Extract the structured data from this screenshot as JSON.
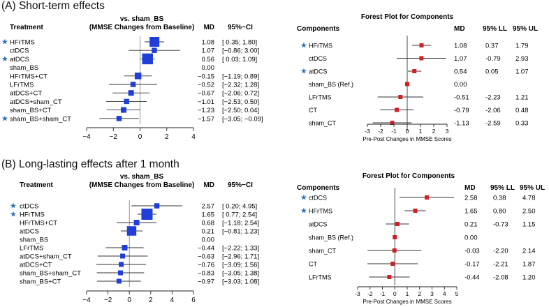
{
  "headings": {
    "a": "(A) Short-term effects",
    "b": "(B) Long-lasting effects after 1 month"
  },
  "colors": {
    "box_blue": "#1f3fd8",
    "square_red": "#d21f26",
    "star": "#2a6fb5",
    "line": "#222222"
  },
  "chart_data": [
    {
      "id": "A_left",
      "type": "forest",
      "title": "vs. sham_BS",
      "subtitle": "(MMSE Changes from Baseline)",
      "col_treatment": "Treatment",
      "col_md": "MD",
      "col_ci": "95%−CI",
      "xlim": [
        -4,
        4
      ],
      "ticks": [
        -4,
        -2,
        0,
        2,
        4
      ],
      "tick_labels": [
        "−4",
        "−2",
        "0",
        "2",
        "4"
      ],
      "rows": [
        {
          "label": "HFrTMS",
          "star": true,
          "md": 1.08,
          "lo": 0.35,
          "hi": 1.8,
          "w": 1.0,
          "md_text": "1.08",
          "ci_text": "[ 0.35;  1.80]"
        },
        {
          "label": "ctDCS",
          "star": false,
          "md": 1.07,
          "lo": -0.86,
          "hi": 3.0,
          "w": 0.35,
          "md_text": "1.07",
          "ci_text": "[−0.86;  3.00]"
        },
        {
          "label": "atDCS",
          "star": true,
          "md": 0.56,
          "lo": 0.03,
          "hi": 1.09,
          "w": 1.15,
          "md_text": "0.56",
          "ci_text": "[ 0.03;  1.09]"
        },
        {
          "label": "sham_BS",
          "star": false,
          "md": null,
          "lo": null,
          "hi": null,
          "w": 0,
          "md_text": "0.00",
          "ci_text": ""
        },
        {
          "label": "HFrTMS+CT",
          "star": false,
          "md": -0.15,
          "lo": -1.19,
          "hi": 0.89,
          "w": 0.55,
          "md_text": "−0.15",
          "ci_text": "[−1.19;  0.89]"
        },
        {
          "label": "LFrTMS",
          "star": false,
          "md": -0.52,
          "lo": -2.32,
          "hi": 1.28,
          "w": 0.35,
          "md_text": "−0.52",
          "ci_text": "[−2.32;  1.28]"
        },
        {
          "label": "atDCS+CT",
          "star": false,
          "md": -0.67,
          "lo": -2.06,
          "hi": 0.72,
          "w": 0.4,
          "md_text": "−0.67",
          "ci_text": "[−2.06;  0.72]"
        },
        {
          "label": "atDCS+sham_CT",
          "star": false,
          "md": -1.01,
          "lo": -2.53,
          "hi": 0.5,
          "w": 0.35,
          "md_text": "−1.01",
          "ci_text": "[−2.53;  0.50]"
        },
        {
          "label": "sham_BS+CT",
          "star": false,
          "md": -1.23,
          "lo": -2.5,
          "hi": 0.04,
          "w": 0.4,
          "md_text": "−1.23",
          "ci_text": "[−2.50;  0.04]"
        },
        {
          "label": "sham_BS+sham_CT",
          "star": true,
          "md": -1.57,
          "lo": -3.05,
          "hi": -0.09,
          "w": 0.35,
          "md_text": "−1.57",
          "ci_text": "[−3.05; −0.09]"
        }
      ]
    },
    {
      "id": "A_right",
      "type": "forest",
      "title": "Forest Plot for Components",
      "col_components": "Components",
      "col_md": "MD",
      "col_ll": "95% LL",
      "col_ul": "95% UL",
      "xlabel": "Pre-Post Changes in MMSE Scores",
      "xlim": [
        -3,
        3
      ],
      "ticks": [
        -3,
        -2,
        -1,
        0,
        1,
        2,
        3
      ],
      "tick_labels": [
        "-3",
        "-2",
        "-1",
        "0",
        "1",
        "2",
        "3"
      ],
      "rows": [
        {
          "label": "HFrTMS",
          "star": true,
          "md": 1.08,
          "lo": 0.37,
          "hi": 1.79,
          "md_text": "1.08",
          "ll_text": "0.37",
          "ul_text": "1.79"
        },
        {
          "label": "ctDCS",
          "star": false,
          "md": 1.07,
          "lo": -0.79,
          "hi": 2.93,
          "md_text": "1.07",
          "ll_text": "-0.79",
          "ul_text": "2.93"
        },
        {
          "label": "atDCS",
          "star": true,
          "md": 0.54,
          "lo": 0.05,
          "hi": 1.07,
          "md_text": "0.54",
          "ll_text": "0.05",
          "ul_text": "1.07"
        },
        {
          "label": "sham_BS (Ref.)",
          "star": false,
          "md": 0.0,
          "lo": null,
          "hi": null,
          "md_text": "0.00",
          "ll_text": "",
          "ul_text": ""
        },
        {
          "label": "LFrTMS",
          "star": false,
          "md": -0.51,
          "lo": -2.23,
          "hi": 1.21,
          "md_text": "-0.51",
          "ll_text": "-2.23",
          "ul_text": "1.21"
        },
        {
          "label": "CT",
          "star": false,
          "md": -0.79,
          "lo": -2.06,
          "hi": 0.48,
          "md_text": "-0.79",
          "ll_text": "-2.06",
          "ul_text": "0.48"
        },
        {
          "label": "sham_CT",
          "star": false,
          "md": -1.13,
          "lo": -2.59,
          "hi": 0.33,
          "md_text": "-1.13",
          "ll_text": "-2.59",
          "ul_text": "0.33"
        }
      ]
    },
    {
      "id": "B_left",
      "type": "forest",
      "title": "vs. sham_BS",
      "subtitle": "(MMSE Changes from Baseline)",
      "col_treatment": "Treatment",
      "col_md": "MD",
      "col_ci": "95%−CI",
      "xlim": [
        -4,
        6
      ],
      "ticks": [
        -4,
        -2,
        0,
        2,
        4,
        6
      ],
      "tick_labels": [
        "−4",
        "−2",
        "0",
        "2",
        "4",
        "6"
      ],
      "rows": [
        {
          "label": "ctDCS",
          "star": true,
          "md": 2.57,
          "lo": 0.2,
          "hi": 4.95,
          "w": 0.35,
          "md_text": "2.57",
          "ci_text": "[ 0.20;  4.95]"
        },
        {
          "label": "HFrTMS",
          "star": true,
          "md": 1.65,
          "lo": 0.77,
          "hi": 2.54,
          "w": 1.2,
          "md_text": "1.65",
          "ci_text": "[ 0.77;  2.54]"
        },
        {
          "label": "HFrTMS+CT",
          "star": false,
          "md": 0.68,
          "lo": -1.18,
          "hi": 2.54,
          "w": 0.4,
          "md_text": "0.68",
          "ci_text": "[−1.18;  2.54]"
        },
        {
          "label": "atDCS",
          "star": false,
          "md": 0.21,
          "lo": -0.81,
          "hi": 1.23,
          "w": 0.95,
          "md_text": "0.21",
          "ci_text": "[−0.81;  1.23]"
        },
        {
          "label": "sham_BS",
          "star": false,
          "md": null,
          "lo": null,
          "hi": null,
          "w": 0,
          "md_text": "0.00",
          "ci_text": ""
        },
        {
          "label": "LFrTMS",
          "star": false,
          "md": -0.44,
          "lo": -2.22,
          "hi": 1.33,
          "w": 0.4,
          "md_text": "−0.44",
          "ci_text": "[−2.22;  1.33]"
        },
        {
          "label": "atDCS+sham_CT",
          "star": false,
          "md": -0.63,
          "lo": -2.96,
          "hi": 1.71,
          "w": 0.3,
          "md_text": "−0.63",
          "ci_text": "[−2.96;  1.71]"
        },
        {
          "label": "atDCS+CT",
          "star": false,
          "md": -0.76,
          "lo": -3.09,
          "hi": 1.56,
          "w": 0.3,
          "md_text": "−0.76",
          "ci_text": "[−3.09;  1.56]"
        },
        {
          "label": "sham_BS+sham_CT",
          "star": false,
          "md": -0.83,
          "lo": -3.05,
          "hi": 1.38,
          "w": 0.3,
          "md_text": "−0.83",
          "ci_text": "[−3.05;  1.38]"
        },
        {
          "label": "sham_BS+CT",
          "star": false,
          "md": -0.97,
          "lo": -3.03,
          "hi": 1.08,
          "w": 0.3,
          "md_text": "−0.97",
          "ci_text": "[−3.03;  1.08]"
        }
      ]
    },
    {
      "id": "B_right",
      "type": "forest",
      "title": "Forest Plot for Components",
      "col_components": "Components",
      "col_md": "MD",
      "col_ll": "95% LL",
      "col_ul": "95% UL",
      "xlabel": "Pre-Post Changes in MMSE Scores",
      "xlim": [
        -3,
        5
      ],
      "ticks": [
        -3,
        -2,
        -1,
        0,
        1,
        2,
        3,
        4,
        5
      ],
      "tick_labels": [
        "-3",
        "-2",
        "-1",
        "0",
        "1",
        "2",
        "3",
        "4",
        "5"
      ],
      "rows": [
        {
          "label": "ctDCS",
          "star": true,
          "md": 2.58,
          "lo": 0.38,
          "hi": 4.78,
          "md_text": "2.58",
          "ll_text": "0.38",
          "ul_text": "4.78"
        },
        {
          "label": "HFrTMS",
          "star": true,
          "md": 1.65,
          "lo": 0.8,
          "hi": 2.5,
          "md_text": "1.65",
          "ll_text": "0.80",
          "ul_text": "2.50"
        },
        {
          "label": "atDCS",
          "star": false,
          "md": 0.21,
          "lo": -0.73,
          "hi": 1.15,
          "md_text": "0.21",
          "ll_text": "-0.73",
          "ul_text": "1.15"
        },
        {
          "label": "sham_BS (Ref.)",
          "star": false,
          "md": 0.0,
          "lo": null,
          "hi": null,
          "md_text": "0.00",
          "ll_text": "",
          "ul_text": ""
        },
        {
          "label": "sham_CT",
          "star": false,
          "md": -0.03,
          "lo": -2.2,
          "hi": 2.14,
          "md_text": "-0.03",
          "ll_text": "-2.20",
          "ul_text": "2.14"
        },
        {
          "label": "CT",
          "star": false,
          "md": -0.17,
          "lo": -2.21,
          "hi": 1.87,
          "md_text": "-0.17",
          "ll_text": "-2.21",
          "ul_text": "1.87"
        },
        {
          "label": "LFrTMS",
          "star": false,
          "md": -0.44,
          "lo": -2.08,
          "hi": 1.2,
          "md_text": "-0.44",
          "ll_text": "-2.08",
          "ul_text": "1.20"
        }
      ]
    }
  ]
}
